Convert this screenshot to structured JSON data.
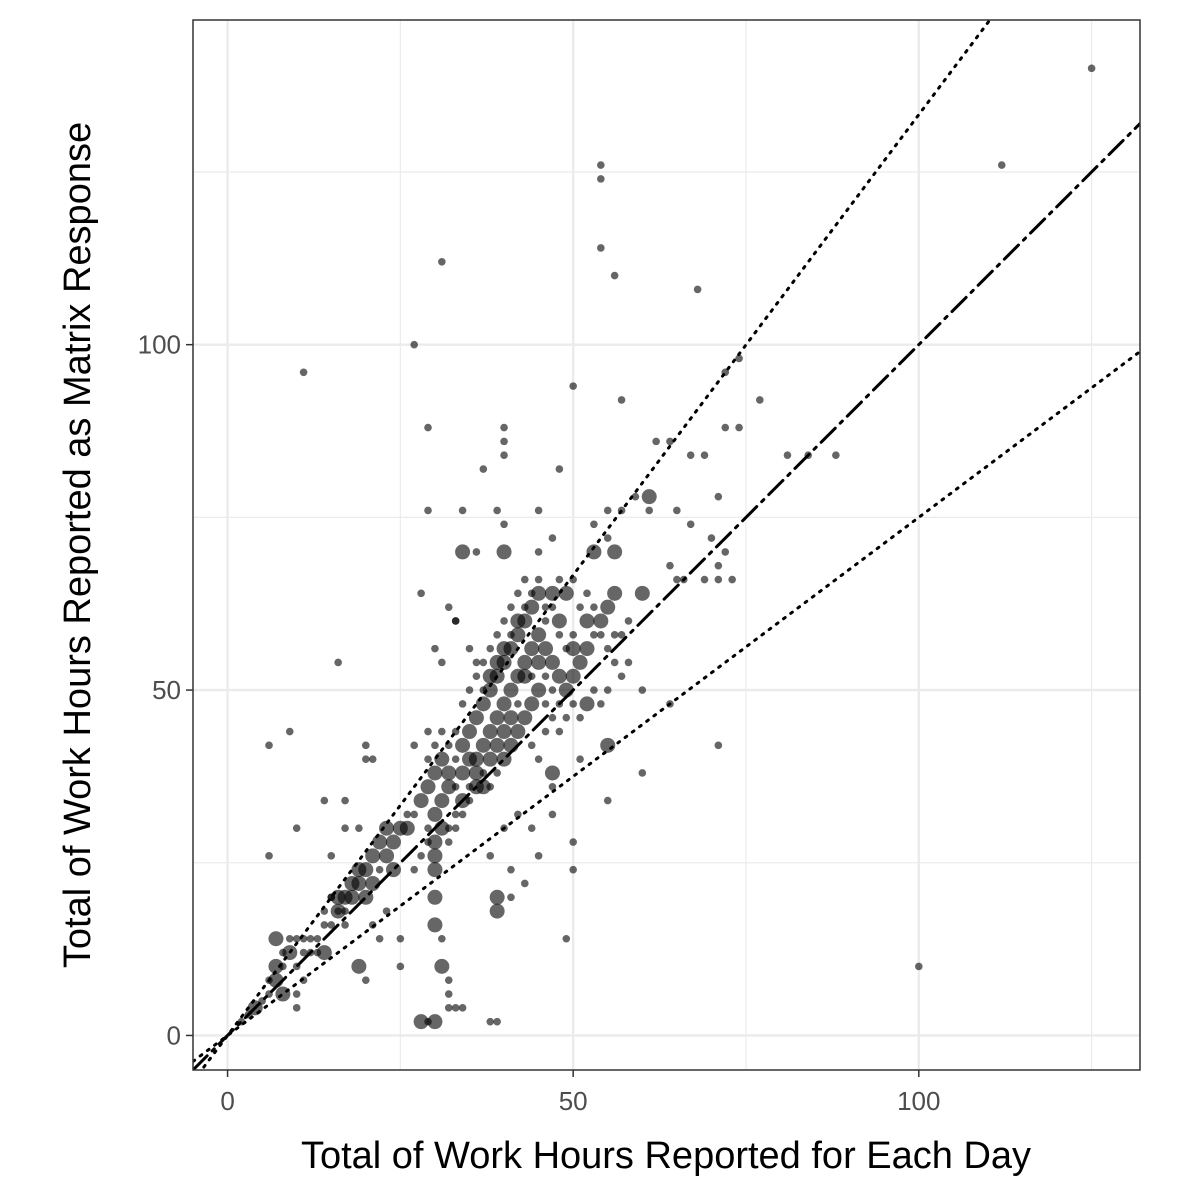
{
  "chart_data": {
    "type": "scatter",
    "title": "",
    "xlabel": "Total of Work Hours Reported for Each Day",
    "ylabel": "Total of Work Hours Reported as Matrix Response",
    "xlim": [
      -5,
      132
    ],
    "ylim": [
      -5,
      147
    ],
    "x_ticks": [
      0,
      50,
      100
    ],
    "y_ticks": [
      0,
      50,
      100
    ],
    "x_minor": [
      25,
      75,
      125
    ],
    "y_minor": [
      25,
      75,
      125
    ],
    "grid": true,
    "legend": "none",
    "point_color": "#000000",
    "point_opacity": 0.6,
    "reference_lines": [
      {
        "kind": "identity",
        "slope": 1.0,
        "style": "dashdot"
      },
      {
        "kind": "upper",
        "slope": 1.333,
        "style": "dotted"
      },
      {
        "kind": "lower",
        "slope": 0.75,
        "style": "dotted"
      }
    ],
    "points": [
      [
        125,
        140,
        1
      ],
      [
        112,
        126,
        1
      ],
      [
        100,
        10,
        1
      ],
      [
        54,
        126,
        1
      ],
      [
        54,
        124,
        1
      ],
      [
        54,
        114,
        1
      ],
      [
        56,
        110,
        1
      ],
      [
        68,
        108,
        1
      ],
      [
        31,
        112,
        1
      ],
      [
        27,
        100,
        1
      ],
      [
        11,
        96,
        1
      ],
      [
        50,
        94,
        1
      ],
      [
        57,
        92,
        1
      ],
      [
        72,
        96,
        1
      ],
      [
        74,
        98,
        1
      ],
      [
        77,
        92,
        1
      ],
      [
        29,
        88,
        1
      ],
      [
        40,
        88,
        1
      ],
      [
        40,
        86,
        1
      ],
      [
        40,
        84,
        1
      ],
      [
        72,
        88,
        1
      ],
      [
        74,
        88,
        1
      ],
      [
        64,
        86,
        1
      ],
      [
        62,
        86,
        1
      ],
      [
        67,
        84,
        1
      ],
      [
        69,
        84,
        1
      ],
      [
        81,
        84,
        1
      ],
      [
        84,
        84,
        1
      ],
      [
        88,
        84,
        1
      ],
      [
        37,
        82,
        1
      ],
      [
        48,
        82,
        1
      ],
      [
        61,
        78,
        2
      ],
      [
        59,
        78,
        1
      ],
      [
        71,
        78,
        1
      ],
      [
        29,
        76,
        1
      ],
      [
        34,
        76,
        1
      ],
      [
        39,
        76,
        1
      ],
      [
        45,
        76,
        1
      ],
      [
        55,
        76,
        1
      ],
      [
        57,
        76,
        1
      ],
      [
        61,
        76,
        1
      ],
      [
        40,
        74,
        1
      ],
      [
        65,
        76,
        1
      ],
      [
        67,
        74,
        1
      ],
      [
        53,
        74,
        1
      ],
      [
        55,
        72,
        1
      ],
      [
        47,
        72,
        1
      ],
      [
        45,
        70,
        1
      ],
      [
        36,
        70,
        1
      ],
      [
        34,
        70,
        2
      ],
      [
        40,
        70,
        2
      ],
      [
        53,
        70,
        2
      ],
      [
        56,
        70,
        2
      ],
      [
        70,
        72,
        1
      ],
      [
        72,
        70,
        1
      ],
      [
        64,
        68,
        1
      ],
      [
        71,
        68,
        1
      ],
      [
        69,
        66,
        1
      ],
      [
        71,
        66,
        1
      ],
      [
        65,
        66,
        1
      ],
      [
        66,
        66,
        1
      ],
      [
        73,
        66,
        1
      ],
      [
        28,
        64,
        1
      ],
      [
        32,
        62,
        1
      ],
      [
        33,
        60,
        1
      ],
      [
        16,
        54,
        1
      ],
      [
        30,
        56,
        1
      ],
      [
        31,
        54,
        1
      ],
      [
        60,
        64,
        2
      ],
      [
        60,
        50,
        1
      ],
      [
        60,
        38,
        1
      ],
      [
        64,
        48,
        1
      ],
      [
        71,
        42,
        1
      ],
      [
        55,
        42,
        2
      ],
      [
        51,
        40,
        1
      ],
      [
        47,
        38,
        2
      ],
      [
        47,
        36,
        1
      ],
      [
        55,
        34,
        1
      ],
      [
        47,
        32,
        1
      ],
      [
        44,
        30,
        1
      ],
      [
        50,
        28,
        1
      ],
      [
        45,
        26,
        1
      ],
      [
        43,
        22,
        1
      ],
      [
        50,
        24,
        1
      ],
      [
        49,
        14,
        1
      ],
      [
        6,
        42,
        1
      ],
      [
        9,
        44,
        1
      ],
      [
        20,
        42,
        1
      ],
      [
        20,
        40,
        1
      ],
      [
        21,
        40,
        1
      ],
      [
        27,
        42,
        1
      ],
      [
        29,
        44,
        1
      ],
      [
        6,
        26,
        1
      ],
      [
        10,
        30,
        1
      ],
      [
        14,
        34,
        1
      ],
      [
        17,
        34,
        1
      ],
      [
        17,
        30,
        1
      ],
      [
        19,
        30,
        1
      ],
      [
        15,
        26,
        1
      ],
      [
        15,
        20,
        1
      ],
      [
        16,
        18,
        1
      ],
      [
        17,
        16,
        1
      ],
      [
        21,
        16,
        1
      ],
      [
        23,
        18,
        1
      ],
      [
        22,
        14,
        1
      ],
      [
        25,
        14,
        1
      ],
      [
        25,
        10,
        1
      ],
      [
        20,
        8,
        1
      ],
      [
        28,
        2,
        2
      ],
      [
        29,
        2,
        1
      ],
      [
        30,
        2,
        2
      ],
      [
        38,
        2,
        1
      ],
      [
        39,
        2,
        1
      ],
      [
        32,
        4,
        1
      ],
      [
        33,
        4,
        1
      ],
      [
        34,
        4,
        1
      ],
      [
        32,
        6,
        1
      ],
      [
        32,
        8,
        1
      ],
      [
        31,
        10,
        2
      ],
      [
        31,
        14,
        1
      ],
      [
        30,
        16,
        2
      ],
      [
        30,
        20,
        2
      ],
      [
        30,
        24,
        2
      ],
      [
        30,
        26,
        2
      ],
      [
        39,
        20,
        2
      ],
      [
        39,
        18,
        2
      ],
      [
        41,
        20,
        1
      ],
      [
        41,
        24,
        1
      ],
      [
        38,
        26,
        1
      ],
      [
        40,
        30,
        1
      ],
      [
        42,
        32,
        1
      ],
      [
        19,
        10,
        2
      ],
      [
        14,
        12,
        2
      ],
      [
        11,
        8,
        1
      ],
      [
        10,
        6,
        1
      ],
      [
        10,
        4,
        1
      ],
      [
        2,
        2,
        1
      ],
      [
        3,
        3,
        1
      ],
      [
        4,
        4,
        2
      ],
      [
        5,
        5,
        1
      ],
      [
        6,
        6,
        1
      ],
      [
        6,
        8,
        1
      ],
      [
        7,
        8,
        2
      ],
      [
        7,
        10,
        2
      ],
      [
        8,
        10,
        1
      ],
      [
        9,
        12,
        2
      ],
      [
        8,
        12,
        1
      ],
      [
        7,
        14,
        2
      ],
      [
        9,
        14,
        1
      ],
      [
        10,
        14,
        1
      ],
      [
        11,
        14,
        1
      ],
      [
        12,
        14,
        1
      ],
      [
        8,
        6,
        2
      ],
      [
        10,
        10,
        1
      ],
      [
        11,
        12,
        1
      ],
      [
        12,
        12,
        1
      ],
      [
        13,
        12,
        1
      ],
      [
        13,
        14,
        1
      ],
      [
        14,
        16,
        1
      ],
      [
        14,
        18,
        1
      ],
      [
        15,
        20,
        1
      ],
      [
        16,
        20,
        2
      ],
      [
        17,
        20,
        2
      ],
      [
        18,
        22,
        2
      ],
      [
        19,
        24,
        2
      ],
      [
        20,
        24,
        2
      ],
      [
        21,
        26,
        2
      ],
      [
        22,
        28,
        2
      ],
      [
        23,
        30,
        2
      ],
      [
        24,
        28,
        2
      ],
      [
        25,
        30,
        2
      ],
      [
        26,
        32,
        1
      ],
      [
        24,
        24,
        2
      ],
      [
        23,
        26,
        2
      ],
      [
        22,
        24,
        1
      ],
      [
        21,
        22,
        2
      ],
      [
        20,
        20,
        2
      ],
      [
        19,
        22,
        2
      ],
      [
        18,
        20,
        2
      ],
      [
        17,
        18,
        1
      ],
      [
        16,
        18,
        2
      ],
      [
        15,
        16,
        1
      ],
      [
        26,
        30,
        2
      ],
      [
        27,
        32,
        1
      ],
      [
        28,
        34,
        2
      ],
      [
        29,
        36,
        2
      ],
      [
        30,
        38,
        2
      ],
      [
        31,
        40,
        2
      ],
      [
        32,
        38,
        2
      ],
      [
        33,
        40,
        1
      ],
      [
        34,
        42,
        2
      ],
      [
        35,
        44,
        2
      ],
      [
        36,
        46,
        2
      ],
      [
        37,
        48,
        2
      ],
      [
        38,
        50,
        2
      ],
      [
        39,
        52,
        2
      ],
      [
        40,
        54,
        2
      ],
      [
        41,
        56,
        2
      ],
      [
        42,
        58,
        2
      ],
      [
        43,
        60,
        2
      ],
      [
        44,
        62,
        2
      ],
      [
        45,
        58,
        2
      ],
      [
        46,
        56,
        2
      ],
      [
        47,
        54,
        2
      ],
      [
        48,
        52,
        2
      ],
      [
        49,
        50,
        2
      ],
      [
        50,
        52,
        2
      ],
      [
        51,
        54,
        2
      ],
      [
        52,
        56,
        2
      ],
      [
        53,
        58,
        1
      ],
      [
        54,
        60,
        2
      ],
      [
        55,
        62,
        2
      ],
      [
        56,
        64,
        2
      ],
      [
        29,
        30,
        1
      ],
      [
        30,
        32,
        2
      ],
      [
        31,
        34,
        2
      ],
      [
        32,
        36,
        2
      ],
      [
        33,
        36,
        1
      ],
      [
        34,
        38,
        2
      ],
      [
        35,
        40,
        2
      ],
      [
        36,
        40,
        2
      ],
      [
        37,
        42,
        2
      ],
      [
        38,
        44,
        2
      ],
      [
        39,
        46,
        2
      ],
      [
        40,
        48,
        2
      ],
      [
        41,
        50,
        2
      ],
      [
        42,
        52,
        2
      ],
      [
        43,
        54,
        2
      ],
      [
        44,
        56,
        2
      ],
      [
        45,
        54,
        2
      ],
      [
        46,
        52,
        1
      ],
      [
        47,
        50,
        1
      ],
      [
        48,
        48,
        1
      ],
      [
        44,
        48,
        2
      ],
      [
        43,
        46,
        2
      ],
      [
        42,
        44,
        2
      ],
      [
        41,
        42,
        2
      ],
      [
        40,
        40,
        2
      ],
      [
        39,
        38,
        1
      ],
      [
        38,
        36,
        1
      ],
      [
        37,
        36,
        2
      ],
      [
        36,
        38,
        2
      ],
      [
        35,
        36,
        1
      ],
      [
        34,
        34,
        2
      ],
      [
        33,
        32,
        1
      ],
      [
        32,
        30,
        1
      ],
      [
        31,
        30,
        2
      ],
      [
        30,
        28,
        2
      ],
      [
        29,
        28,
        1
      ],
      [
        28,
        26,
        1
      ],
      [
        27,
        24,
        1
      ],
      [
        33,
        60,
        1
      ],
      [
        35,
        56,
        1
      ],
      [
        36,
        52,
        1
      ],
      [
        37,
        50,
        1
      ],
      [
        38,
        52,
        2
      ],
      [
        39,
        54,
        2
      ],
      [
        40,
        56,
        2
      ],
      [
        41,
        58,
        1
      ],
      [
        42,
        60,
        2
      ],
      [
        43,
        62,
        1
      ],
      [
        44,
        64,
        1
      ],
      [
        45,
        64,
        2
      ],
      [
        46,
        62,
        1
      ],
      [
        47,
        64,
        2
      ],
      [
        48,
        66,
        1
      ],
      [
        49,
        64,
        2
      ],
      [
        50,
        66,
        1
      ],
      [
        51,
        62,
        1
      ],
      [
        52,
        64,
        1
      ],
      [
        53,
        62,
        1
      ],
      [
        54,
        58,
        1
      ],
      [
        55,
        56,
        1
      ],
      [
        56,
        54,
        1
      ],
      [
        57,
        52,
        1
      ],
      [
        58,
        54,
        1
      ],
      [
        57,
        58,
        1
      ],
      [
        58,
        60,
        1
      ],
      [
        56,
        58,
        1
      ],
      [
        55,
        50,
        1
      ],
      [
        50,
        58,
        1
      ],
      [
        49,
        56,
        1
      ],
      [
        48,
        58,
        1
      ],
      [
        46,
        60,
        1
      ],
      [
        44,
        52,
        1
      ],
      [
        45,
        50,
        2
      ],
      [
        46,
        48,
        1
      ],
      [
        43,
        52,
        2
      ],
      [
        42,
        48,
        1
      ],
      [
        41,
        46,
        2
      ],
      [
        40,
        44,
        2
      ],
      [
        39,
        42,
        2
      ],
      [
        38,
        40,
        2
      ],
      [
        37,
        38,
        1
      ],
      [
        36,
        36,
        2
      ],
      [
        35,
        34,
        1
      ],
      [
        34,
        32,
        1
      ],
      [
        33,
        30,
        1
      ],
      [
        32,
        28,
        1
      ],
      [
        45,
        40,
        1
      ],
      [
        44,
        42,
        1
      ],
      [
        46,
        44,
        1
      ],
      [
        47,
        46,
        1
      ],
      [
        48,
        44,
        1
      ],
      [
        52,
        48,
        2
      ],
      [
        53,
        50,
        1
      ],
      [
        51,
        46,
        1
      ],
      [
        50,
        48,
        1
      ],
      [
        49,
        46,
        1
      ],
      [
        54,
        48,
        1
      ],
      [
        50,
        56,
        2
      ],
      [
        52,
        60,
        2
      ],
      [
        48,
        60,
        2
      ],
      [
        47,
        62,
        1
      ],
      [
        45,
        66,
        1
      ],
      [
        43,
        66,
        1
      ],
      [
        42,
        64,
        1
      ],
      [
        41,
        62,
        1
      ],
      [
        40,
        60,
        1
      ],
      [
        39,
        58,
        1
      ],
      [
        38,
        56,
        1
      ],
      [
        37,
        54,
        1
      ],
      [
        36,
        54,
        1
      ],
      [
        35,
        50,
        1
      ],
      [
        34,
        48,
        1
      ],
      [
        33,
        44,
        1
      ],
      [
        32,
        42,
        1
      ],
      [
        31,
        44,
        1
      ],
      [
        30,
        42,
        1
      ],
      [
        29,
        40,
        1
      ]
    ]
  }
}
